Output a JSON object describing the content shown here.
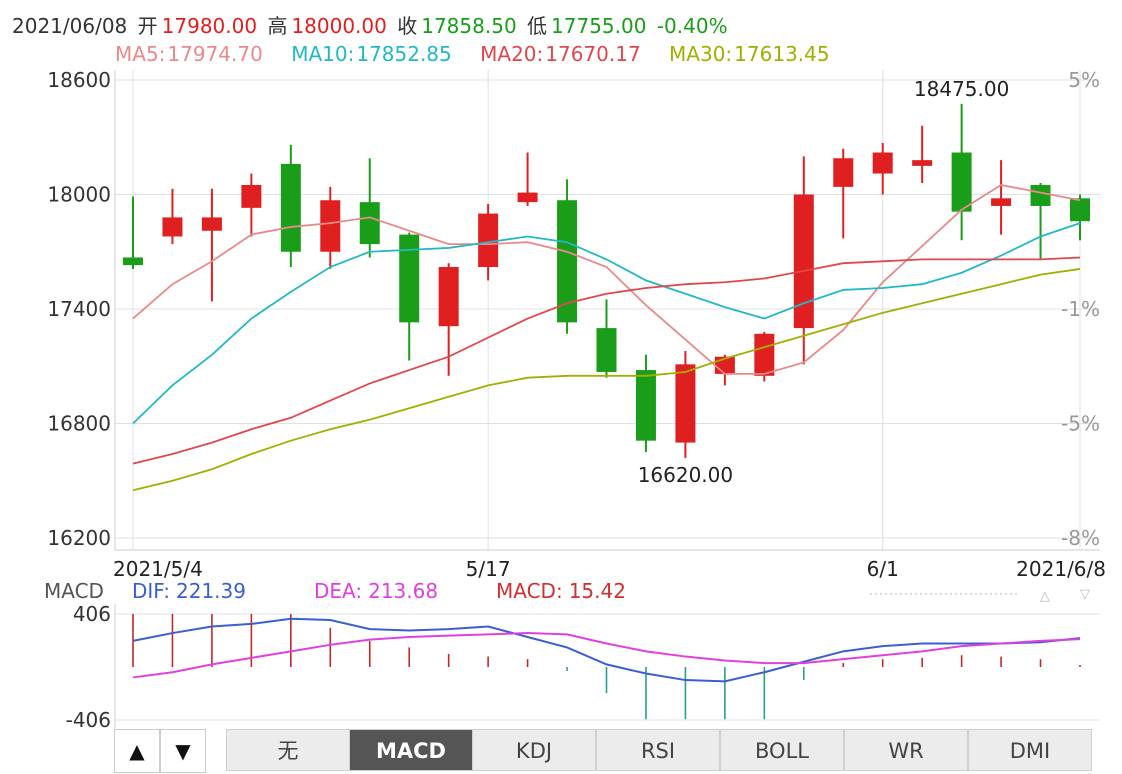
{
  "header": {
    "date": "2021/06/08",
    "open_label": "开",
    "open": "17980.00",
    "high_label": "高",
    "high": "18000.00",
    "close_label": "收",
    "close": "17858.50",
    "low_label": "低",
    "low": "17755.00",
    "change": "-0.40%"
  },
  "ma_legend": [
    {
      "label": "MA5:",
      "value": "17974.70",
      "color": "#e88a8a"
    },
    {
      "label": "MA10:",
      "value": "17852.85",
      "color": "#22b8c8"
    },
    {
      "label": "MA20:",
      "value": "17670.17",
      "color": "#e0474c"
    },
    {
      "label": "MA30:",
      "value": "17613.45",
      "color": "#a0b000"
    }
  ],
  "macd_legend": {
    "title": "MACD",
    "dif_label": "DIF:",
    "dif": "221.39",
    "dea_label": "DEA:",
    "dea": "213.68",
    "macd_label": "MACD:",
    "macd": "15.42"
  },
  "colors": {
    "up": "#e02020",
    "down": "#1a9e1a",
    "dif": "#3a5fd0",
    "dea": "#e040e0",
    "grid": "#e0e0e0"
  },
  "chart_data": {
    "type": "candlestick",
    "y_ticks_left": [
      "18600",
      "18000",
      "17400",
      "16800",
      "16200"
    ],
    "y_ticks_right": [
      "5%",
      "-1%",
      "-5%",
      "-8%"
    ],
    "ylim": [
      16200,
      18600
    ],
    "x_labels": [
      {
        "index": 0,
        "text": "2021/5/4"
      },
      {
        "index": 9,
        "text": "5/17"
      },
      {
        "index": 19,
        "text": "6/1"
      },
      {
        "index": 24,
        "text": "2021/6/8"
      }
    ],
    "annotations": [
      {
        "index": 21,
        "price": 18475,
        "text": "18475.00"
      },
      {
        "index": 14,
        "price": 16620,
        "text": "16620.00"
      }
    ],
    "candles": [
      {
        "o": 17670,
        "c": 17630,
        "h": 17990,
        "l": 17610
      },
      {
        "o": 17780,
        "c": 17880,
        "h": 18030,
        "l": 17740
      },
      {
        "o": 17810,
        "c": 17880,
        "h": 18030,
        "l": 17440
      },
      {
        "o": 17930,
        "c": 18050,
        "h": 18110,
        "l": 17780
      },
      {
        "o": 18160,
        "c": 17700,
        "h": 18260,
        "l": 17620
      },
      {
        "o": 17700,
        "c": 17970,
        "h": 18040,
        "l": 17610
      },
      {
        "o": 17960,
        "c": 17740,
        "h": 18190,
        "l": 17670
      },
      {
        "o": 17790,
        "c": 17330,
        "h": 17800,
        "l": 17130
      },
      {
        "o": 17310,
        "c": 17620,
        "h": 17640,
        "l": 17050
      },
      {
        "o": 17620,
        "c": 17900,
        "h": 17950,
        "l": 17550
      },
      {
        "o": 17960,
        "c": 18010,
        "h": 18220,
        "l": 17940
      },
      {
        "o": 17970,
        "c": 17330,
        "h": 18080,
        "l": 17270
      },
      {
        "o": 17300,
        "c": 17070,
        "h": 17450,
        "l": 17040
      },
      {
        "o": 17080,
        "c": 16710,
        "h": 17160,
        "l": 16650
      },
      {
        "o": 16700,
        "c": 17110,
        "h": 17180,
        "l": 16620
      },
      {
        "o": 17060,
        "c": 17150,
        "h": 17160,
        "l": 17000
      },
      {
        "o": 17050,
        "c": 17270,
        "h": 17280,
        "l": 17020
      },
      {
        "o": 17300,
        "c": 18000,
        "h": 18200,
        "l": 17110
      },
      {
        "o": 18040,
        "c": 18190,
        "h": 18240,
        "l": 17770
      },
      {
        "o": 18110,
        "c": 18220,
        "h": 18270,
        "l": 18000
      },
      {
        "o": 18150,
        "c": 18180,
        "h": 18360,
        "l": 18060
      },
      {
        "o": 18220,
        "c": 17910,
        "h": 18475,
        "l": 17760
      },
      {
        "o": 17940,
        "c": 17980,
        "h": 18180,
        "l": 17790
      },
      {
        "o": 18050,
        "c": 17940,
        "h": 18060,
        "l": 17660
      },
      {
        "o": 17980,
        "c": 17860,
        "h": 18000,
        "l": 17760
      }
    ],
    "series": [
      {
        "name": "MA5",
        "values": [
          17350,
          17530,
          17650,
          17790,
          17830,
          17850,
          17880,
          17810,
          17740,
          17740,
          17750,
          17700,
          17620,
          17420,
          17240,
          17060,
          17060,
          17120,
          17290,
          17540,
          17730,
          17920,
          18050,
          18010,
          17970
        ]
      },
      {
        "name": "MA10",
        "values": [
          16800,
          17000,
          17160,
          17350,
          17490,
          17620,
          17700,
          17710,
          17720,
          17750,
          17780,
          17750,
          17660,
          17550,
          17480,
          17410,
          17350,
          17430,
          17500,
          17510,
          17530,
          17590,
          17680,
          17780,
          17850
        ]
      },
      {
        "name": "MA20",
        "values": [
          16590,
          16640,
          16700,
          16770,
          16830,
          16920,
          17010,
          17080,
          17150,
          17250,
          17350,
          17430,
          17480,
          17510,
          17530,
          17540,
          17560,
          17600,
          17640,
          17650,
          17660,
          17660,
          17660,
          17660,
          17670
        ]
      },
      {
        "name": "MA30",
        "values": [
          16450,
          16500,
          16560,
          16640,
          16710,
          16770,
          16820,
          16880,
          16940,
          17000,
          17040,
          17050,
          17050,
          17050,
          17070,
          17140,
          17200,
          17260,
          17320,
          17380,
          17430,
          17480,
          17530,
          17580,
          17610
        ]
      }
    ],
    "macd": {
      "y_ticks": [
        "406",
        "-406"
      ],
      "ylim": [
        -406,
        406
      ],
      "dif": [
        200,
        260,
        310,
        330,
        370,
        360,
        290,
        280,
        290,
        310,
        230,
        150,
        20,
        -50,
        -100,
        -110,
        -40,
        40,
        120,
        160,
        180,
        180,
        180,
        190,
        221
      ],
      "dea": [
        -80,
        -40,
        20,
        70,
        120,
        170,
        210,
        230,
        240,
        250,
        260,
        250,
        180,
        120,
        80,
        50,
        30,
        30,
        60,
        90,
        120,
        160,
        180,
        200,
        214
      ],
      "hist": [
        406,
        406,
        406,
        406,
        406,
        300,
        200,
        150,
        100,
        80,
        60,
        -30,
        -200,
        -400,
        -400,
        -400,
        -400,
        -100,
        30,
        60,
        70,
        90,
        80,
        60,
        15
      ]
    }
  },
  "tabs": {
    "up_arrow": "▲",
    "down_arrow": "▼",
    "items": [
      "无",
      "MACD",
      "KDJ",
      "RSI",
      "BOLL",
      "WR",
      "DMI"
    ],
    "active": "MACD"
  }
}
